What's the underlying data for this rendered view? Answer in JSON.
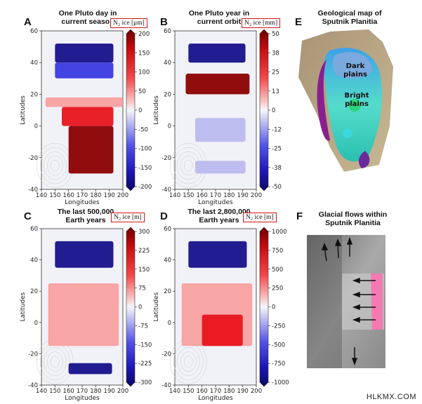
{
  "watermark": "HLKMX.COM",
  "panels": {
    "A": {
      "letter": "A",
      "title_line1": "One Pluto day in",
      "title_line2": "current season",
      "unit_label": "N₂ ice [μm]",
      "colorbar_ticks": [
        "200",
        "150",
        "100",
        "50",
        "0",
        "-50",
        "-100",
        "-150",
        "-200"
      ]
    },
    "B": {
      "letter": "B",
      "title_line1": "One Pluto year in",
      "title_line2": "current orbit",
      "unit_label": "N₂ ice [mm]",
      "colorbar_ticks": [
        "50",
        "38",
        "25",
        "13",
        "0",
        "-12",
        "-25",
        "-38",
        "-50"
      ]
    },
    "C": {
      "letter": "C",
      "title_line1": "The last 500,000",
      "title_line2": "Earth years",
      "unit_label": "N₂ ice [m]",
      "colorbar_ticks": [
        "300",
        "225",
        "150",
        "75",
        "0",
        "-75",
        "-150",
        "-225",
        "-300"
      ]
    },
    "D": {
      "letter": "D",
      "title_line1": "The last 2,800,000",
      "title_line2": "Earth years",
      "unit_label": "N₂ ice [m]",
      "colorbar_ticks": [
        "1000",
        "750",
        "500",
        "250",
        "0",
        "-250",
        "-500",
        "-750",
        "-1000"
      ]
    },
    "E": {
      "letter": "E",
      "title_line1": "Geological map of",
      "title_line2": "Sputnik Planitia",
      "label_dark": "Dark",
      "label_dark2": "plains",
      "label_bright": "Bright",
      "label_bright2": "plains"
    },
    "F": {
      "letter": "F",
      "title_line1": "Glacial flows within",
      "title_line2": "Sputnik Planitia"
    }
  },
  "axes": {
    "xlabel": "Longitudes",
    "ylabel": "Latitudes",
    "xticks": [
      "140",
      "150",
      "160",
      "170",
      "180",
      "190",
      "200"
    ],
    "yticks": [
      "60",
      "40",
      "20",
      "0",
      "-20",
      "-40"
    ]
  },
  "colors": {
    "deep_red": "#8b0000",
    "red": "#e8141c",
    "pink": "#f7a0a0",
    "white": "#f4f4fb",
    "light_blue": "#b9b9ee",
    "blue": "#3a3ae0",
    "deep_blue": "#15108a",
    "box_red": "#d0141a"
  },
  "chart_data": [
    {
      "type": "heatmap",
      "panel": "A",
      "title": "One Pluto day in current season",
      "xlabel": "Longitudes",
      "ylabel": "Latitudes",
      "xlim": [
        140,
        200
      ],
      "ylim": [
        -40,
        60
      ],
      "colorbar_label": "N₂ ice [μm]",
      "colorbar_range": [
        -200,
        200
      ],
      "regions": [
        {
          "lon": [
            150,
            193
          ],
          "lat": [
            40,
            52
          ],
          "value": -180
        },
        {
          "lon": [
            150,
            193
          ],
          "lat": [
            30,
            40
          ],
          "value": -120
        },
        {
          "lon": [
            143,
            200
          ],
          "lat": [
            12,
            18
          ],
          "value": 30
        },
        {
          "lon": [
            155,
            193
          ],
          "lat": [
            0,
            12
          ],
          "value": 80
        },
        {
          "lon": [
            160,
            193
          ],
          "lat": [
            -30,
            0
          ],
          "value": 170
        }
      ]
    },
    {
      "type": "heatmap",
      "panel": "B",
      "title": "One Pluto year in current orbit",
      "xlabel": "Longitudes",
      "ylabel": "Latitudes",
      "xlim": [
        140,
        200
      ],
      "ylim": [
        -40,
        60
      ],
      "colorbar_label": "N₂ ice [mm]",
      "colorbar_range": [
        -50,
        50
      ],
      "regions": [
        {
          "lon": [
            150,
            192
          ],
          "lat": [
            40,
            52
          ],
          "value": -45
        },
        {
          "lon": [
            148,
            195
          ],
          "lat": [
            20,
            33
          ],
          "value": 45
        },
        {
          "lon": [
            155,
            192
          ],
          "lat": [
            -10,
            5
          ],
          "value": -12
        },
        {
          "lon": [
            155,
            192
          ],
          "lat": [
            -30,
            -22
          ],
          "value": -8
        }
      ]
    },
    {
      "type": "heatmap",
      "panel": "C",
      "title": "The last 500,000 Earth years",
      "xlabel": "Longitudes",
      "ylabel": "Latitudes",
      "xlim": [
        140,
        200
      ],
      "ylim": [
        -40,
        60
      ],
      "colorbar_label": "N₂ ice [m]",
      "colorbar_range": [
        -300,
        300
      ],
      "regions": [
        {
          "lon": [
            150,
            193
          ],
          "lat": [
            35,
            52
          ],
          "value": -280
        },
        {
          "lon": [
            145,
            197
          ],
          "lat": [
            -15,
            25
          ],
          "value": 100
        },
        {
          "lon": [
            160,
            192
          ],
          "lat": [
            -33,
            -26
          ],
          "value": -250
        }
      ]
    },
    {
      "type": "heatmap",
      "panel": "D",
      "title": "The last 2,800,000 Earth years",
      "xlabel": "Longitudes",
      "ylabel": "Latitudes",
      "xlim": [
        140,
        200
      ],
      "ylim": [
        -40,
        60
      ],
      "colorbar_label": "N₂ ice [m]",
      "colorbar_range": [
        -1000,
        1000
      ],
      "regions": [
        {
          "lon": [
            150,
            193
          ],
          "lat": [
            35,
            52
          ],
          "value": -950
        },
        {
          "lon": [
            145,
            197
          ],
          "lat": [
            -15,
            25
          ],
          "value": 300
        },
        {
          "lon": [
            160,
            190
          ],
          "lat": [
            -15,
            5
          ],
          "value": 450
        }
      ]
    }
  ]
}
